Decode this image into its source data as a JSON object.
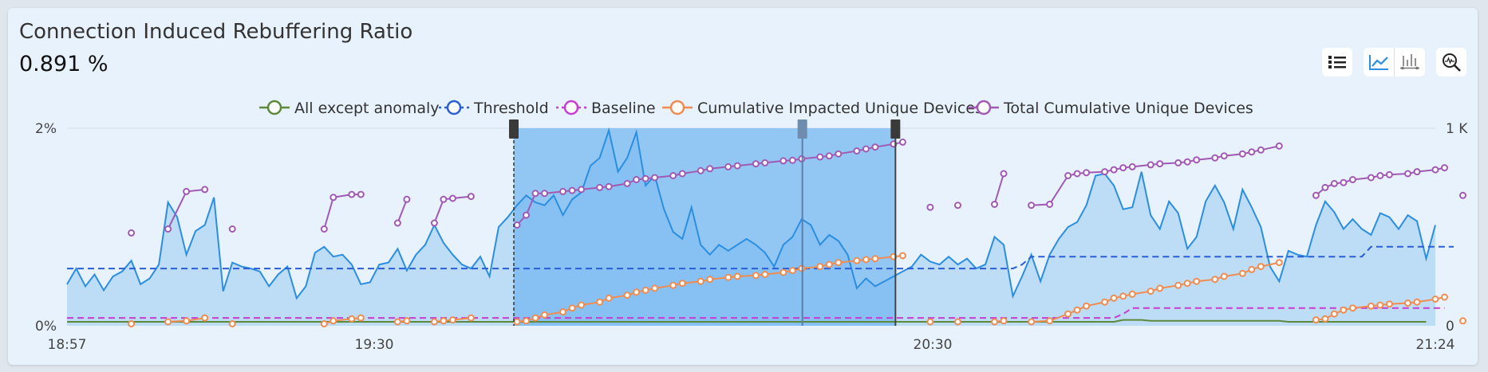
{
  "header": {
    "title": "Connection Induced Rebuffering Ratio",
    "value": "0.891 %"
  },
  "toolbar": {
    "buttons": [
      "list-icon",
      "line-chart-icon",
      "bar-chart-icon",
      "zoom-search-icon"
    ]
  },
  "colors": {
    "anomaly": "#5c8a3a",
    "threshold": "#2a5ed6",
    "baseline": "#c83cd2",
    "impacted": "#f08c50",
    "total": "#a05ab4",
    "metric_line": "#2b8ee0",
    "metric_fill": "#b8d9f5",
    "selection": "#75b8f2"
  },
  "chart_data": {
    "type": "line",
    "title": "Connection Induced Rebuffering Ratio",
    "x_ticks": [
      "18:57",
      "19:30",
      "20:30",
      "21:24"
    ],
    "y_left_ticks": [
      "2%",
      "0%"
    ],
    "y_right_ticks": [
      "1 K",
      "0"
    ],
    "ylim_left": [
      0,
      2
    ],
    "ylim_right": [
      0,
      1000
    ],
    "legend_position": "top-center",
    "selection": {
      "start": "19:45",
      "end": "20:26",
      "marker": "20:16"
    },
    "series": [
      {
        "name": "All except anomaly",
        "axis": "left",
        "style": "line",
        "key": "anomaly"
      },
      {
        "name": "Threshold",
        "axis": "left",
        "style": "dashed",
        "key": "threshold"
      },
      {
        "name": "Baseline",
        "axis": "left",
        "style": "dashed",
        "key": "baseline"
      },
      {
        "name": "Cumulative Impacted Unique Devices",
        "axis": "right",
        "style": "line-markers",
        "key": "impacted"
      },
      {
        "name": "Total Cumulative Unique Devices",
        "axis": "right",
        "style": "line-markers",
        "key": "total"
      }
    ],
    "metric": {
      "y": [
        0.42,
        0.58,
        0.4,
        0.52,
        0.36,
        0.5,
        0.55,
        0.66,
        0.42,
        0.48,
        0.62,
        1.25,
        1.1,
        0.72,
        0.96,
        1.02,
        1.3,
        0.35,
        0.64,
        0.6,
        0.58,
        0.55,
        0.4,
        0.52,
        0.6,
        0.28,
        0.4,
        0.74,
        0.8,
        0.7,
        0.72,
        0.62,
        0.42,
        0.44,
        0.62,
        0.64,
        0.78,
        0.56,
        0.72,
        0.82,
        1.02,
        0.84,
        0.72,
        0.62,
        0.58,
        0.7,
        0.5,
        1.0,
        1.1,
        1.22,
        1.32,
        1.25,
        1.22,
        1.32,
        1.12,
        1.28,
        1.35,
        1.62,
        1.7,
        1.98,
        1.56,
        1.7,
        1.96,
        1.42,
        1.52,
        1.18,
        0.95,
        0.88,
        1.2,
        0.82,
        0.72,
        0.82,
        0.76,
        0.82,
        0.88,
        0.82,
        0.74,
        0.6,
        0.82,
        0.9,
        1.08,
        1.02,
        0.82,
        0.92,
        0.86,
        0.72,
        0.38,
        0.48,
        0.4,
        0.45,
        0.5,
        0.55,
        0.6,
        0.72,
        0.65,
        0.62,
        0.7,
        0.62,
        0.68,
        0.58,
        0.62,
        0.9,
        0.82,
        0.3,
        0.5,
        0.72,
        0.45,
        0.72,
        0.88,
        1.0,
        1.05,
        1.22,
        1.52,
        1.54,
        1.42,
        1.18,
        1.2,
        1.56,
        1.12,
        0.98,
        1.26,
        1.14,
        0.78,
        0.9,
        1.26,
        1.42,
        1.25,
        0.98,
        1.38,
        1.2,
        1.0,
        0.6,
        0.45,
        0.76,
        0.72,
        0.7,
        1.02,
        1.26,
        1.15,
        0.98,
        1.08,
        0.98,
        0.92,
        1.14,
        1.1,
        0.98,
        1.12,
        1.06,
        0.68,
        1.02
      ]
    },
    "threshold": {
      "y": [
        0.58,
        0.58,
        0.58,
        0.58,
        0.58,
        0.58,
        0.58,
        0.58,
        0.58,
        0.58,
        0.58,
        0.58,
        0.58,
        0.58,
        0.58,
        0.58,
        0.58,
        0.58,
        0.58,
        0.58,
        0.58,
        0.58,
        0.58,
        0.58,
        0.58,
        0.58,
        0.58,
        0.58,
        0.58,
        0.58,
        0.58,
        0.58,
        0.58,
        0.58,
        0.58,
        0.58,
        0.58,
        0.58,
        0.58,
        0.58,
        0.58,
        0.58,
        0.58,
        0.58,
        0.58,
        0.58,
        0.58,
        0.58,
        0.58,
        0.58,
        0.58,
        0.58,
        0.58,
        0.58,
        0.58,
        0.58,
        0.58,
        0.58,
        0.58,
        0.58,
        0.58,
        0.58,
        0.58,
        0.58,
        0.58,
        0.58,
        0.58,
        0.58,
        0.58,
        0.58,
        0.58,
        0.58,
        0.58,
        0.58,
        0.58,
        0.58,
        0.58,
        0.58,
        0.58,
        0.58,
        0.58,
        0.58,
        0.58,
        0.58,
        0.58,
        0.58,
        0.58,
        0.58,
        0.58,
        0.58,
        0.58,
        0.58,
        0.58,
        0.58,
        0.58,
        0.58,
        0.58,
        0.58,
        0.58,
        0.58,
        0.58,
        0.58,
        0.58,
        0.58,
        0.62,
        0.7,
        0.7,
        0.7,
        0.7,
        0.7,
        0.7,
        0.7,
        0.7,
        0.7,
        0.7,
        0.7,
        0.7,
        0.7,
        0.7,
        0.7,
        0.7,
        0.7,
        0.7,
        0.7,
        0.7,
        0.7,
        0.7,
        0.7,
        0.7,
        0.7,
        0.7,
        0.7,
        0.7,
        0.7,
        0.7,
        0.7,
        0.7,
        0.7,
        0.7,
        0.7,
        0.7,
        0.7,
        0.8,
        0.8,
        0.8,
        0.8,
        0.8,
        0.8,
        0.8,
        0.8,
        0.8,
        0.8
      ]
    },
    "baseline": {
      "y": [
        0.08,
        0.08,
        0.08,
        0.08,
        0.08,
        0.08,
        0.08,
        0.08,
        0.08,
        0.08,
        0.08,
        0.08,
        0.08,
        0.08,
        0.08,
        0.08,
        0.08,
        0.08,
        0.08,
        0.08,
        0.08,
        0.08,
        0.08,
        0.08,
        0.08,
        0.08,
        0.08,
        0.08,
        0.08,
        0.08,
        0.08,
        0.08,
        0.08,
        0.08,
        0.08,
        0.08,
        0.08,
        0.08,
        0.08,
        0.08,
        0.08,
        0.08,
        0.08,
        0.08,
        0.08,
        0.08,
        0.08,
        0.08,
        0.08,
        0.08,
        0.08,
        0.08,
        0.08,
        0.08,
        0.08,
        0.08,
        0.08,
        0.08,
        0.08,
        0.08,
        0.08,
        0.08,
        0.08,
        0.08,
        0.08,
        0.08,
        0.08,
        0.08,
        0.08,
        0.08,
        0.08,
        0.08,
        0.08,
        0.08,
        0.08,
        0.08,
        0.08,
        0.08,
        0.08,
        0.08,
        0.08,
        0.08,
        0.08,
        0.08,
        0.08,
        0.08,
        0.08,
        0.08,
        0.08,
        0.08,
        0.08,
        0.08,
        0.08,
        0.08,
        0.08,
        0.08,
        0.08,
        0.08,
        0.08,
        0.08,
        0.08,
        0.08,
        0.08,
        0.08,
        0.08,
        0.08,
        0.08,
        0.08,
        0.08,
        0.08,
        0.08,
        0.08,
        0.08,
        0.08,
        0.08,
        0.12,
        0.18,
        0.18,
        0.18,
        0.18,
        0.18,
        0.18,
        0.18,
        0.18,
        0.18,
        0.18,
        0.18,
        0.18,
        0.18,
        0.18,
        0.18,
        0.18,
        0.18,
        0.18,
        0.18,
        0.18,
        0.18,
        0.18,
        0.18,
        0.18,
        0.18,
        0.18,
        0.18,
        0.18,
        0.18,
        0.18,
        0.18,
        0.18,
        0.18,
        0.18,
        0.18
      ]
    },
    "anomaly": {
      "y": [
        0.04,
        0.04,
        0.04,
        0.04,
        0.04,
        0.04,
        0.04,
        0.04,
        0.04,
        0.04,
        0.04,
        0.04,
        0.04,
        0.04,
        0.04,
        0.04,
        0.04,
        0.04,
        0.04,
        0.04,
        0.04,
        0.04,
        0.04,
        0.04,
        0.04,
        0.04,
        0.04,
        0.04,
        0.04,
        0.04,
        0.04,
        0.04,
        0.04,
        0.04,
        0.04,
        0.04,
        0.04,
        0.04,
        0.04,
        0.04,
        0.04,
        0.04,
        0.04,
        0.04,
        0.04,
        0.04,
        0.04,
        0.04,
        0.04,
        0.04,
        0.04,
        0.04,
        0.04,
        0.04,
        0.04,
        0.04,
        0.04,
        0.04,
        0.04,
        0.04,
        0.04,
        0.04,
        0.04,
        0.04,
        0.04,
        0.04,
        0.04,
        0.04,
        0.04,
        0.04,
        0.04,
        0.04,
        0.04,
        0.04,
        0.04,
        0.04,
        0.04,
        0.04,
        0.04,
        0.04,
        0.04,
        0.04,
        0.04,
        0.04,
        0.04,
        0.04,
        0.04,
        0.04,
        0.04,
        0.04,
        0.04,
        0.04,
        0.04,
        0.04,
        0.04,
        0.04,
        0.04,
        0.04,
        0.04,
        0.04,
        0.04,
        0.04,
        0.04,
        0.04,
        0.04,
        0.04,
        0.04,
        0.04,
        0.04,
        0.04,
        0.04,
        0.04,
        0.04,
        0.04,
        0.04,
        0.06,
        0.06,
        0.06,
        0.05,
        0.05,
        0.05,
        0.05,
        0.05,
        0.05,
        0.05,
        0.05,
        0.05,
        0.05,
        0.05,
        0.05,
        0.05,
        0.05,
        0.05,
        0.04,
        0.04,
        0.04,
        0.04,
        0.04,
        0.04,
        0.04,
        0.04,
        0.04,
        0.04,
        0.04,
        0.04,
        0.04,
        0.04,
        0.04,
        0.04
      ]
    },
    "total_segments": [
      [
        [
          7,
          470
        ]
      ],
      [
        [
          11,
          490
        ],
        [
          13,
          680
        ],
        [
          15,
          690
        ]
      ],
      [
        [
          18,
          490
        ]
      ],
      [
        [
          28,
          490
        ],
        [
          29,
          650
        ],
        [
          31,
          665
        ],
        [
          32,
          665
        ]
      ],
      [
        [
          36,
          520
        ],
        [
          37,
          640
        ]
      ],
      [
        [
          40,
          520
        ],
        [
          41,
          640
        ],
        [
          42,
          645
        ],
        [
          44,
          655
        ]
      ],
      [
        [
          49,
          510
        ],
        [
          50,
          560
        ],
        [
          51,
          670
        ],
        [
          52,
          670
        ],
        [
          54,
          680
        ],
        [
          55,
          685
        ],
        [
          56,
          690
        ],
        [
          58,
          700
        ],
        [
          59,
          705
        ],
        [
          61,
          720
        ],
        [
          62,
          740
        ],
        [
          63,
          745
        ],
        [
          64,
          750
        ],
        [
          66,
          760
        ],
        [
          67,
          770
        ],
        [
          69,
          785
        ],
        [
          70,
          795
        ],
        [
          72,
          805
        ],
        [
          73,
          810
        ],
        [
          75,
          820
        ],
        [
          76,
          825
        ],
        [
          78,
          835
        ],
        [
          79,
          838
        ],
        [
          80,
          845
        ],
        [
          82,
          855
        ],
        [
          83,
          860
        ],
        [
          84,
          870
        ],
        [
          86,
          885
        ],
        [
          87,
          895
        ],
        [
          88,
          905
        ],
        [
          90,
          920
        ],
        [
          91,
          930
        ]
      ],
      [
        [
          94,
          600
        ]
      ],
      [
        [
          97,
          610
        ]
      ],
      [
        [
          101,
          615
        ],
        [
          102,
          770
        ]
      ],
      [
        [
          105,
          610
        ],
        [
          107,
          615
        ],
        [
          109,
          760
        ],
        [
          110,
          770
        ],
        [
          111,
          775
        ],
        [
          113,
          780
        ],
        [
          114,
          790
        ],
        [
          115,
          800
        ],
        [
          116,
          805
        ],
        [
          118,
          815
        ],
        [
          119,
          820
        ],
        [
          121,
          825
        ],
        [
          122,
          830
        ],
        [
          123,
          840
        ],
        [
          125,
          850
        ],
        [
          126,
          860
        ],
        [
          128,
          870
        ],
        [
          129,
          880
        ],
        [
          130,
          890
        ],
        [
          132,
          910
        ]
      ],
      [
        [
          136,
          660
        ],
        [
          137,
          700
        ],
        [
          138,
          720
        ],
        [
          139,
          725
        ],
        [
          140,
          740
        ],
        [
          142,
          750
        ],
        [
          143,
          760
        ],
        [
          144,
          765
        ],
        [
          146,
          770
        ],
        [
          147,
          780
        ],
        [
          149,
          790
        ],
        [
          150,
          800
        ]
      ],
      [
        [
          152,
          660
        ]
      ]
    ],
    "impacted_segments": [
      [
        [
          7,
          10
        ]
      ],
      [
        [
          11,
          20
        ],
        [
          13,
          25
        ],
        [
          15,
          40
        ]
      ],
      [
        [
          18,
          10
        ]
      ],
      [
        [
          28,
          10
        ],
        [
          29,
          25
        ],
        [
          31,
          35
        ],
        [
          32,
          40
        ]
      ],
      [
        [
          36,
          20
        ],
        [
          37,
          25
        ]
      ],
      [
        [
          40,
          20
        ],
        [
          41,
          25
        ],
        [
          42,
          30
        ],
        [
          44,
          40
        ]
      ],
      [
        [
          49,
          20
        ],
        [
          50,
          25
        ],
        [
          51,
          40
        ],
        [
          52,
          55
        ],
        [
          54,
          70
        ],
        [
          55,
          90
        ],
        [
          56,
          105
        ],
        [
          58,
          120
        ],
        [
          59,
          140
        ],
        [
          61,
          155
        ],
        [
          62,
          170
        ],
        [
          63,
          180
        ],
        [
          64,
          190
        ],
        [
          66,
          205
        ],
        [
          67,
          215
        ],
        [
          69,
          225
        ],
        [
          70,
          235
        ],
        [
          72,
          245
        ],
        [
          73,
          250
        ],
        [
          75,
          255
        ],
        [
          76,
          260
        ],
        [
          78,
          270
        ],
        [
          79,
          280
        ],
        [
          80,
          290
        ],
        [
          82,
          300
        ],
        [
          83,
          310
        ],
        [
          84,
          320
        ],
        [
          86,
          330
        ],
        [
          87,
          335
        ],
        [
          88,
          340
        ],
        [
          90,
          350
        ],
        [
          91,
          355
        ]
      ],
      [
        [
          94,
          20
        ]
      ],
      [
        [
          97,
          20
        ]
      ],
      [
        [
          101,
          20
        ],
        [
          102,
          25
        ]
      ],
      [
        [
          105,
          20
        ],
        [
          107,
          25
        ],
        [
          109,
          60
        ],
        [
          110,
          80
        ],
        [
          111,
          100
        ],
        [
          113,
          120
        ],
        [
          114,
          140
        ],
        [
          115,
          150
        ],
        [
          116,
          160
        ],
        [
          118,
          175
        ],
        [
          119,
          190
        ],
        [
          121,
          205
        ],
        [
          122,
          215
        ],
        [
          123,
          225
        ],
        [
          125,
          235
        ],
        [
          126,
          250
        ],
        [
          128,
          265
        ],
        [
          129,
          285
        ],
        [
          130,
          300
        ],
        [
          132,
          320
        ]
      ],
      [
        [
          136,
          30
        ],
        [
          137,
          35
        ],
        [
          138,
          60
        ],
        [
          139,
          80
        ],
        [
          140,
          90
        ],
        [
          142,
          100
        ],
        [
          143,
          105
        ],
        [
          144,
          110
        ],
        [
          146,
          115
        ],
        [
          147,
          120
        ],
        [
          149,
          135
        ],
        [
          150,
          145
        ]
      ],
      [
        [
          152,
          25
        ]
      ]
    ]
  },
  "legend": [
    {
      "label": "All except anomaly",
      "key": "anomaly"
    },
    {
      "label": "Threshold",
      "key": "threshold"
    },
    {
      "label": "Baseline",
      "key": "baseline"
    },
    {
      "label": "Cumulative Impacted Unique Devices",
      "key": "impacted"
    },
    {
      "label": "Total Cumulative Unique Devices",
      "key": "total"
    }
  ]
}
